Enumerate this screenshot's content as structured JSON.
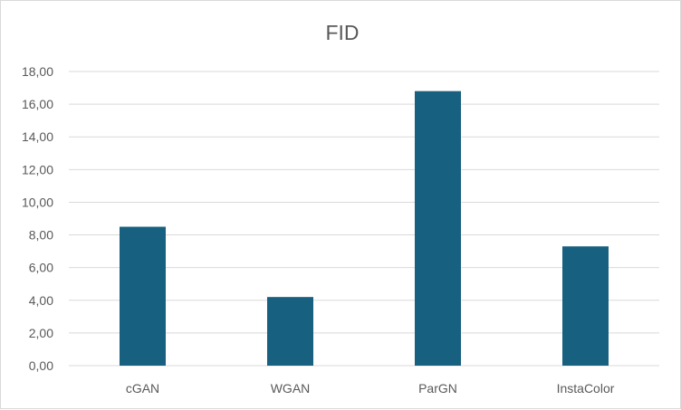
{
  "chart_data": {
    "type": "bar",
    "title": "FID",
    "categories": [
      "cGAN",
      "WGAN",
      "ParGN",
      "InstaColor"
    ],
    "values": [
      8.5,
      4.2,
      16.8,
      7.3
    ],
    "ylim": [
      0,
      18
    ],
    "yticks": [
      0,
      2,
      4,
      6,
      8,
      10,
      12,
      14,
      16,
      18
    ],
    "ytick_labels": [
      "0,00",
      "2,00",
      "4,00",
      "6,00",
      "8,00",
      "10,00",
      "12,00",
      "14,00",
      "16,00",
      "18,00"
    ],
    "xlabel": "",
    "ylabel": "",
    "grid": true,
    "legend": "none",
    "bar_color": "#17607f"
  }
}
